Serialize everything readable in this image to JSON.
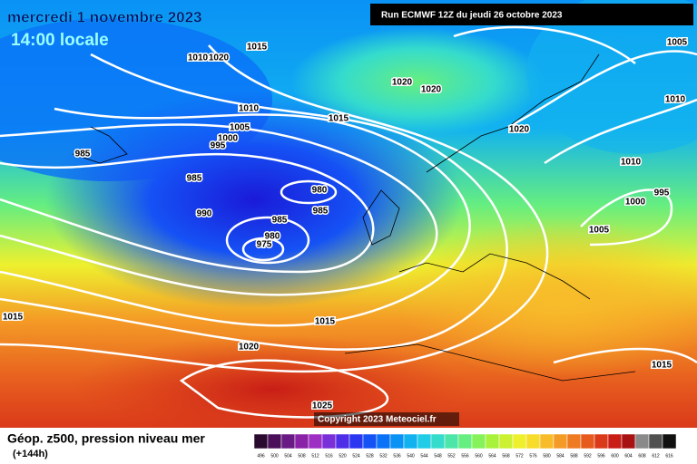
{
  "header": {
    "date": "mercredi 1 novembre 2023",
    "time": "14:00 locale",
    "run": "Run ECMWF 12Z du jeudi 26 octobre 2023"
  },
  "isobars": [
    "1015",
    "1010",
    "1020",
    "1020",
    "1020",
    "1015",
    "1010",
    "1005",
    "1000",
    "995",
    "985",
    "985",
    "980",
    "985",
    "990",
    "985",
    "980",
    "975",
    "1020",
    "1010",
    "1000",
    "995",
    "1005",
    "1005",
    "1010",
    "1015",
    "1015",
    "1020",
    "1025",
    "1015"
  ],
  "copyright": "Copyright 2023 Meteociel.fr",
  "footer": {
    "title": "Géop. z500, pression niveau mer",
    "lead": "(+144h)"
  },
  "legend": {
    "labels": [
      "496",
      "500",
      "504",
      "508",
      "512",
      "516",
      "520",
      "524",
      "528",
      "532",
      "536",
      "540",
      "544",
      "548",
      "552",
      "556",
      "560",
      "564",
      "568",
      "572",
      "576",
      "580",
      "584",
      "588",
      "592",
      "596",
      "600",
      "604",
      "608",
      "612",
      "616"
    ],
    "colors": [
      "#2a0a2e",
      "#4b0f5a",
      "#6a1a85",
      "#8a22a8",
      "#9e2fc4",
      "#7a30d8",
      "#4f2ee8",
      "#2a36f0",
      "#1552f5",
      "#0a72f7",
      "#0a92f5",
      "#12b2f0",
      "#20cce6",
      "#35dccc",
      "#4ee6a8",
      "#66ee80",
      "#85f25a",
      "#a8f23c",
      "#ccf032",
      "#eef02e",
      "#f8dc2c",
      "#f8bc2a",
      "#f49a26",
      "#ee7a22",
      "#e65a1e",
      "#da3a1a",
      "#c81e16",
      "#a81212",
      "#8a8a8a",
      "#505050",
      "#101010"
    ]
  }
}
